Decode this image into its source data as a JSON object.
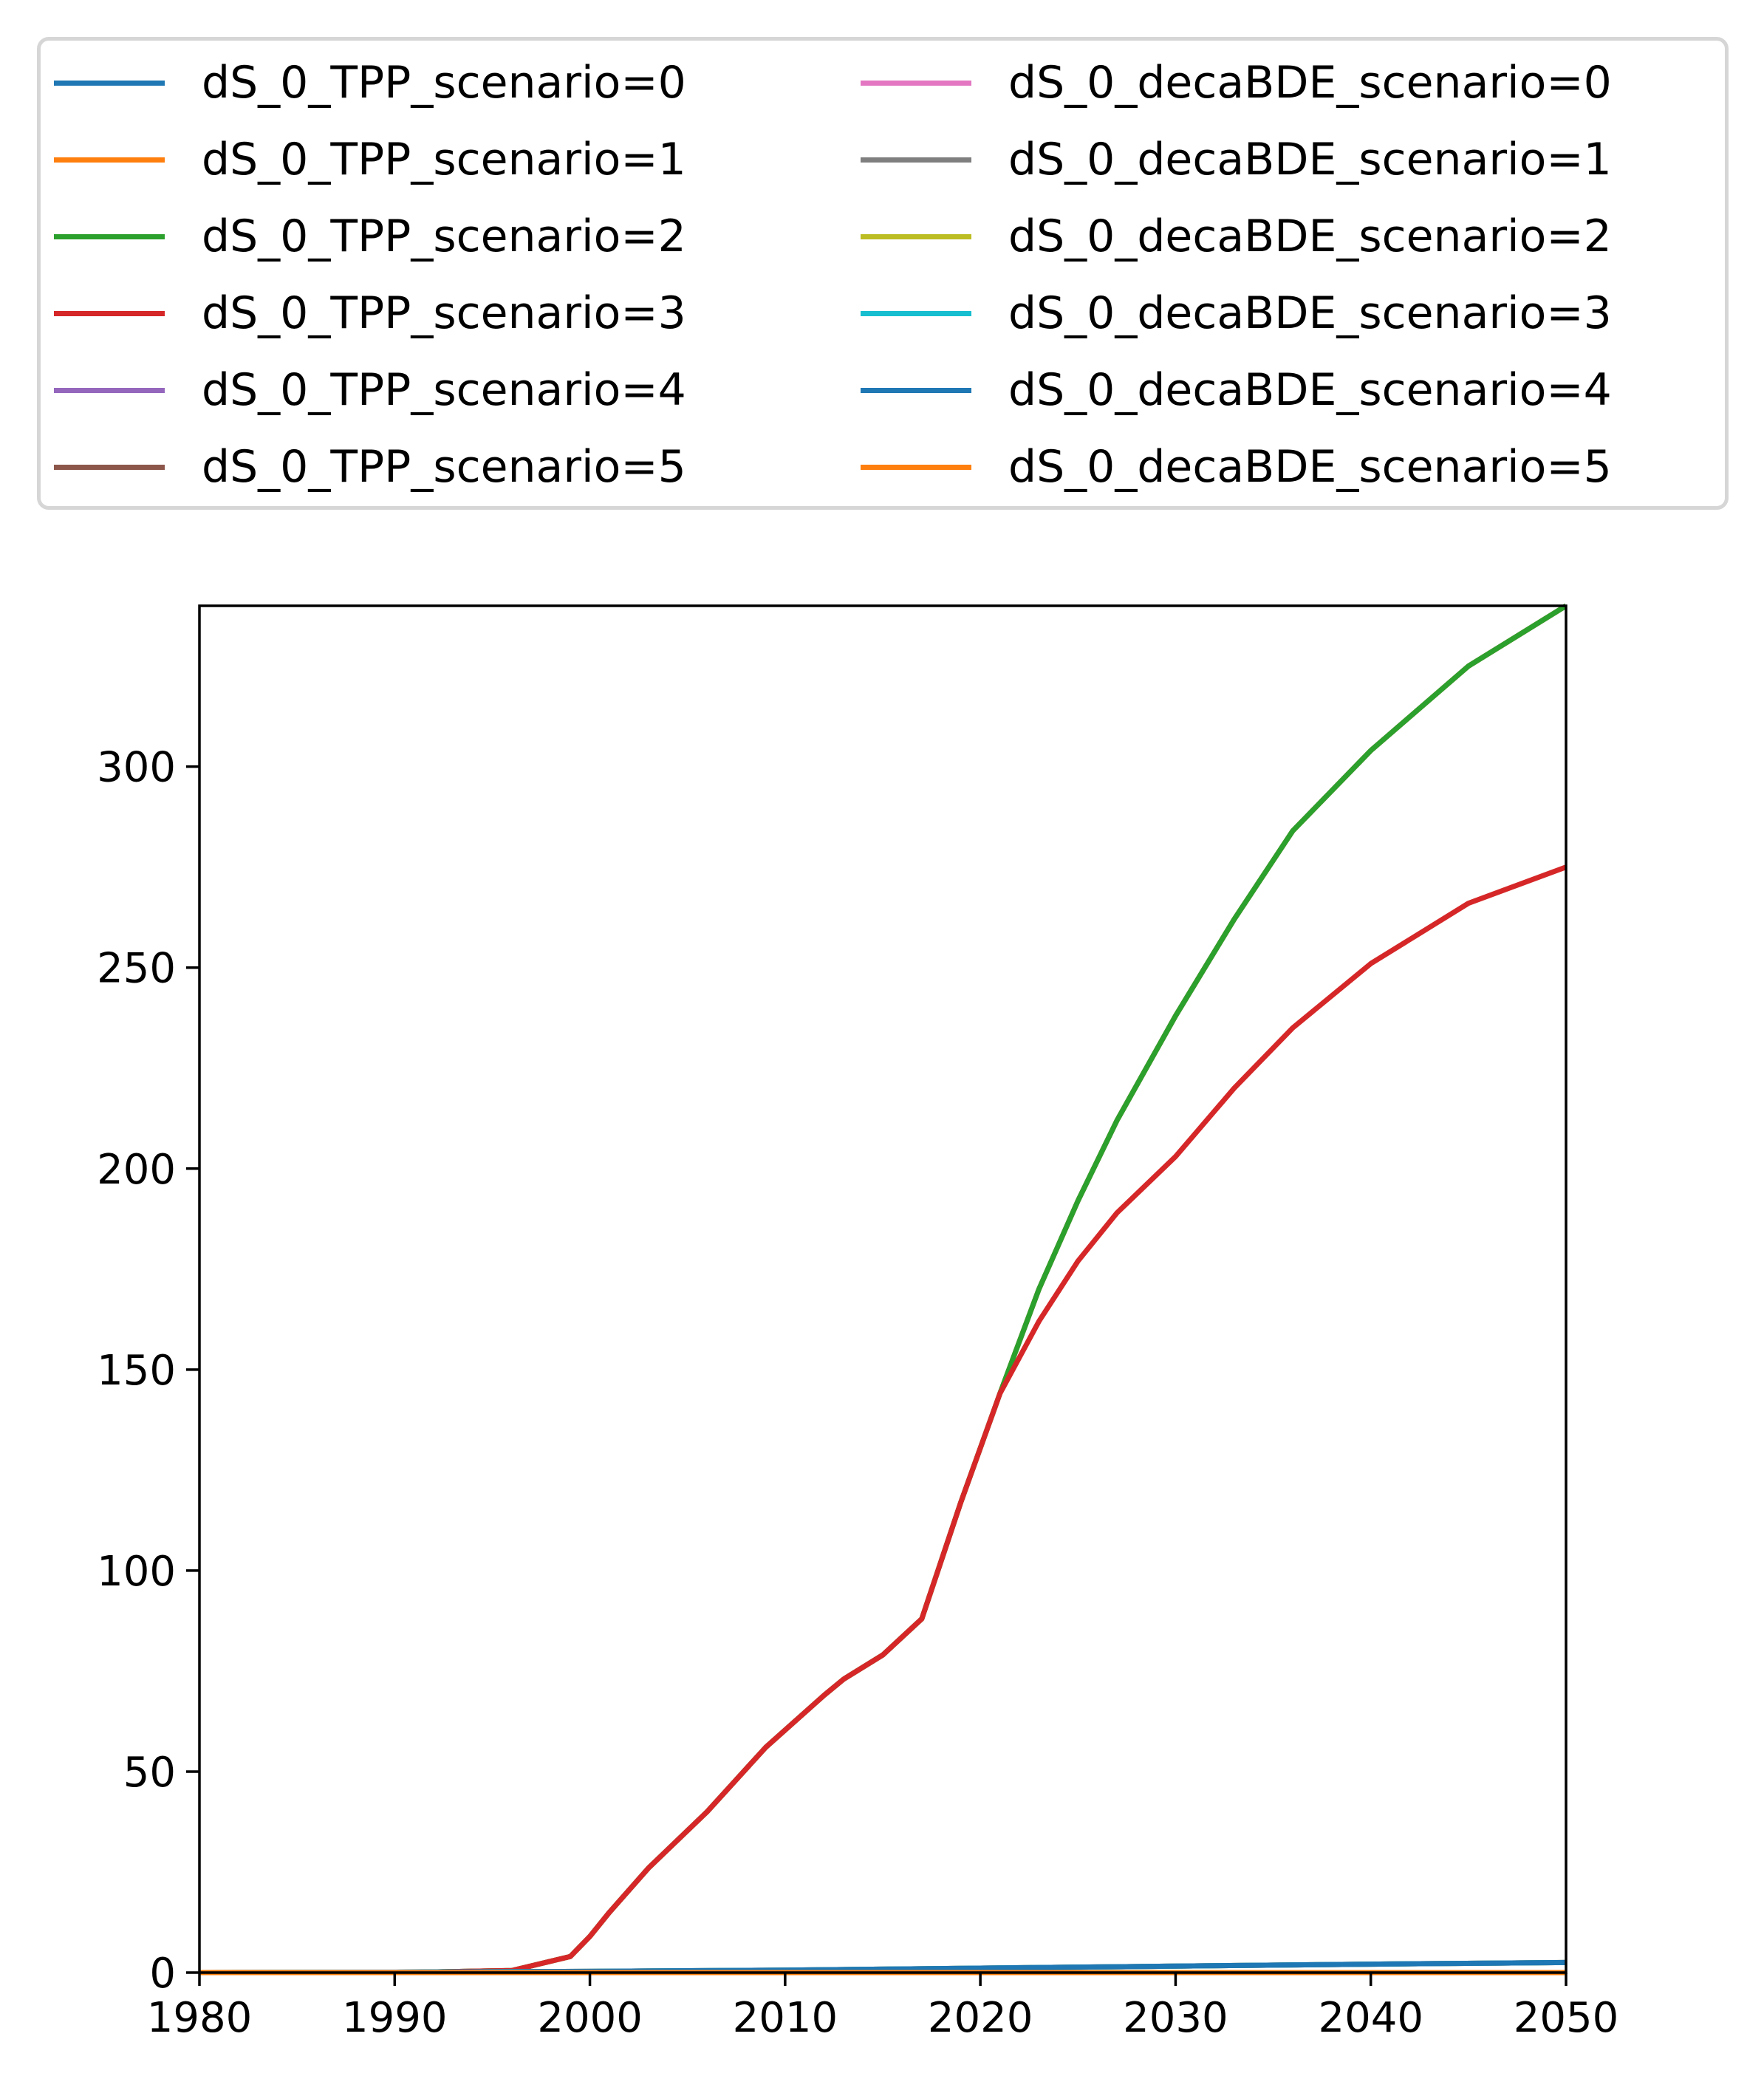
{
  "chart_data": {
    "type": "line",
    "title": "",
    "xlabel": "",
    "ylabel": "",
    "xlim": [
      1980,
      2050
    ],
    "ylim": [
      0,
      340
    ],
    "grid": false,
    "legend_placement": "top, outside plot, 2 columns",
    "x_ticks": [
      "1980",
      "1990",
      "2000",
      "2010",
      "2020",
      "2030",
      "2040",
      "2050"
    ],
    "y_ticks": [
      "0",
      "50",
      "100",
      "150",
      "200",
      "250",
      "300"
    ],
    "x_tick_values": [
      1980,
      1990,
      2000,
      2010,
      2020,
      2030,
      2040,
      2050
    ],
    "y_tick_values": [
      0,
      50,
      100,
      150,
      200,
      250,
      300
    ],
    "series": [
      {
        "name": "dS_0_TPP_scenario=0",
        "color": "#1f77b4",
        "points": [
          [
            1980,
            0
          ],
          [
            1990,
            0
          ],
          [
            1996,
            0.5
          ],
          [
            1999,
            4
          ],
          [
            2000,
            9
          ],
          [
            2001,
            15
          ],
          [
            2003,
            26
          ],
          [
            2006,
            40
          ],
          [
            2009,
            56
          ],
          [
            2012,
            69
          ],
          [
            2013,
            73
          ],
          [
            2015,
            79
          ],
          [
            2017,
            88
          ],
          [
            2019,
            117
          ],
          [
            2021,
            144
          ],
          [
            2023,
            170
          ],
          [
            2025,
            192
          ],
          [
            2027,
            212
          ],
          [
            2030,
            238
          ],
          [
            2033,
            262
          ],
          [
            2036,
            284
          ],
          [
            2040,
            304
          ],
          [
            2045,
            325
          ],
          [
            2050,
            340
          ]
        ]
      },
      {
        "name": "dS_0_TPP_scenario=1",
        "color": "#ff7f0e",
        "points": [
          [
            1980,
            0
          ],
          [
            1990,
            0
          ],
          [
            1996,
            0.5
          ],
          [
            1999,
            4
          ],
          [
            2000,
            9
          ],
          [
            2001,
            15
          ],
          [
            2003,
            26
          ],
          [
            2006,
            40
          ],
          [
            2009,
            56
          ],
          [
            2012,
            69
          ],
          [
            2013,
            73
          ],
          [
            2015,
            79
          ],
          [
            2017,
            88
          ],
          [
            2019,
            117
          ],
          [
            2021,
            144
          ],
          [
            2023,
            170
          ],
          [
            2025,
            192
          ],
          [
            2027,
            212
          ],
          [
            2030,
            238
          ],
          [
            2033,
            262
          ],
          [
            2036,
            284
          ],
          [
            2040,
            304
          ],
          [
            2045,
            325
          ],
          [
            2050,
            340
          ]
        ]
      },
      {
        "name": "dS_0_TPP_scenario=2",
        "color": "#2ca02c",
        "points": [
          [
            1980,
            0
          ],
          [
            1990,
            0
          ],
          [
            1996,
            0.5
          ],
          [
            1999,
            4
          ],
          [
            2000,
            9
          ],
          [
            2001,
            15
          ],
          [
            2003,
            26
          ],
          [
            2006,
            40
          ],
          [
            2009,
            56
          ],
          [
            2012,
            69
          ],
          [
            2013,
            73
          ],
          [
            2015,
            79
          ],
          [
            2017,
            88
          ],
          [
            2019,
            117
          ],
          [
            2021,
            144
          ],
          [
            2023,
            170
          ],
          [
            2025,
            192
          ],
          [
            2027,
            212
          ],
          [
            2030,
            238
          ],
          [
            2033,
            262
          ],
          [
            2036,
            284
          ],
          [
            2040,
            304
          ],
          [
            2045,
            325
          ],
          [
            2050,
            340
          ]
        ]
      },
      {
        "name": "dS_0_TPP_scenario=3",
        "color": "#d62728",
        "points": [
          [
            1980,
            0
          ],
          [
            1990,
            0
          ],
          [
            1996,
            0.5
          ],
          [
            1999,
            4
          ],
          [
            2000,
            9
          ],
          [
            2001,
            15
          ],
          [
            2003,
            26
          ],
          [
            2006,
            40
          ],
          [
            2009,
            56
          ],
          [
            2012,
            69
          ],
          [
            2013,
            73
          ],
          [
            2015,
            79
          ],
          [
            2017,
            88
          ],
          [
            2019,
            117
          ],
          [
            2021,
            144
          ],
          [
            2023,
            162
          ],
          [
            2025,
            177
          ],
          [
            2027,
            189
          ],
          [
            2030,
            203
          ],
          [
            2033,
            220
          ],
          [
            2036,
            235
          ],
          [
            2040,
            251
          ],
          [
            2045,
            266
          ],
          [
            2050,
            275
          ]
        ]
      },
      {
        "name": "dS_0_TPP_scenario=4",
        "color": "#9467bd",
        "points": [
          [
            1980,
            0
          ],
          [
            1990,
            0
          ],
          [
            2000,
            0
          ],
          [
            2010,
            0
          ],
          [
            2020,
            0
          ],
          [
            2030,
            0
          ],
          [
            2040,
            0
          ],
          [
            2050,
            0
          ]
        ]
      },
      {
        "name": "dS_0_TPP_scenario=5",
        "color": "#8c564b",
        "points": [
          [
            1980,
            0
          ],
          [
            1990,
            0
          ],
          [
            2000,
            0
          ],
          [
            2010,
            0
          ],
          [
            2020,
            0
          ],
          [
            2030,
            0
          ],
          [
            2040,
            0
          ],
          [
            2050,
            0
          ]
        ]
      },
      {
        "name": "dS_0_decaBDE_scenario=0",
        "color": "#e377c2",
        "points": [
          [
            1980,
            0
          ],
          [
            1990,
            0.1
          ],
          [
            2000,
            0.3
          ],
          [
            2010,
            0.6
          ],
          [
            2020,
            1.1
          ],
          [
            2030,
            1.6
          ],
          [
            2040,
            2.1
          ],
          [
            2050,
            2.5
          ]
        ]
      },
      {
        "name": "dS_0_decaBDE_scenario=1",
        "color": "#7f7f7f",
        "points": [
          [
            1980,
            0
          ],
          [
            1990,
            0.1
          ],
          [
            2000,
            0.3
          ],
          [
            2010,
            0.6
          ],
          [
            2020,
            1.1
          ],
          [
            2030,
            1.6
          ],
          [
            2040,
            2.1
          ],
          [
            2050,
            2.5
          ]
        ]
      },
      {
        "name": "dS_0_decaBDE_scenario=2",
        "color": "#bcbd22",
        "points": [
          [
            1980,
            0
          ],
          [
            1990,
            0.1
          ],
          [
            2000,
            0.3
          ],
          [
            2010,
            0.6
          ],
          [
            2020,
            1.1
          ],
          [
            2030,
            1.6
          ],
          [
            2040,
            2.1
          ],
          [
            2050,
            2.5
          ]
        ]
      },
      {
        "name": "dS_0_decaBDE_scenario=3",
        "color": "#17becf",
        "points": [
          [
            1980,
            0
          ],
          [
            1990,
            0.1
          ],
          [
            2000,
            0.3
          ],
          [
            2010,
            0.6
          ],
          [
            2020,
            1.1
          ],
          [
            2030,
            1.6
          ],
          [
            2040,
            2.1
          ],
          [
            2050,
            2.5
          ]
        ]
      },
      {
        "name": "dS_0_decaBDE_scenario=4",
        "color": "#1f77b4",
        "points": [
          [
            1980,
            0
          ],
          [
            1990,
            0.1
          ],
          [
            2000,
            0.3
          ],
          [
            2010,
            0.6
          ],
          [
            2020,
            1.1
          ],
          [
            2030,
            1.6
          ],
          [
            2040,
            2.1
          ],
          [
            2050,
            2.5
          ]
        ]
      },
      {
        "name": "dS_0_decaBDE_scenario=5",
        "color": "#ff7f0e",
        "points": [
          [
            1980,
            0
          ],
          [
            1990,
            0
          ],
          [
            2000,
            0
          ],
          [
            2010,
            0
          ],
          [
            2020,
            0
          ],
          [
            2030,
            0
          ],
          [
            2040,
            0
          ],
          [
            2050,
            0
          ]
        ]
      }
    ]
  }
}
